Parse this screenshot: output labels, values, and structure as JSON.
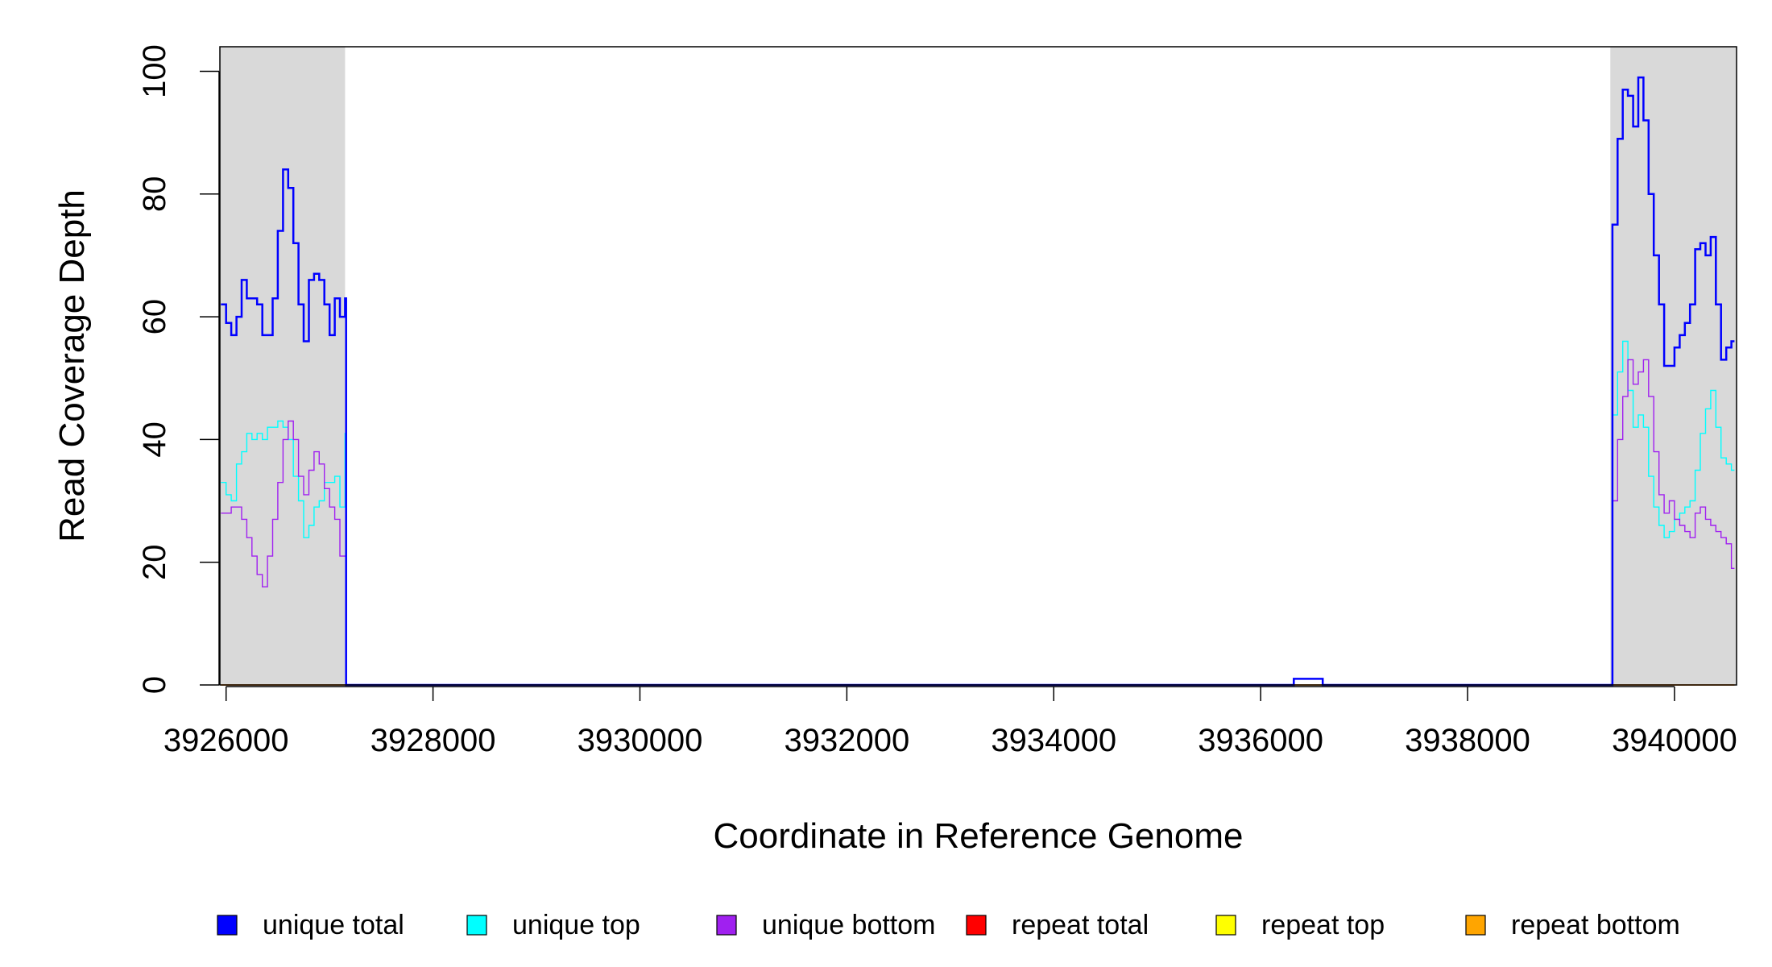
{
  "chart_data": {
    "type": "line",
    "title": "",
    "xlabel": "Coordinate in Reference Genome",
    "ylabel": "Read Coverage Depth",
    "xlim": [
      3925940,
      3940600
    ],
    "ylim": [
      0,
      104
    ],
    "x_ticks": [
      3926000,
      3928000,
      3930000,
      3932000,
      3934000,
      3936000,
      3938000,
      3940000
    ],
    "x_tick_labels": [
      "3926000",
      "3928000",
      "3930000",
      "3932000",
      "3934000",
      "3936000",
      "3938000",
      "3940000"
    ],
    "y_ticks": [
      0,
      20,
      40,
      60,
      80,
      100
    ],
    "y_tick_labels": [
      "0",
      "20",
      "40",
      "60",
      "80",
      "100"
    ],
    "shaded_regions": [
      {
        "x_start": 3925940,
        "x_end": 3927150
      },
      {
        "x_start": 3939380,
        "x_end": 3940600
      }
    ],
    "legend_position": "bottom",
    "series": [
      {
        "name": "unique total",
        "color": "#0000ff",
        "x": [
          3925950,
          3926000,
          3926050,
          3926100,
          3926150,
          3926200,
          3926250,
          3926300,
          3926350,
          3926400,
          3926450,
          3926500,
          3926550,
          3926600,
          3926650,
          3926700,
          3926750,
          3926800,
          3926850,
          3926900,
          3926950,
          3927000,
          3927050,
          3927100,
          3927150,
          3927160,
          3936300,
          3936320,
          3936580,
          3936600,
          3939380,
          3939400,
          3939450,
          3939500,
          3939550,
          3939600,
          3939650,
          3939700,
          3939750,
          3939800,
          3939850,
          3939900,
          3939950,
          3940000,
          3940050,
          3940100,
          3940150,
          3940200,
          3940250,
          3940300,
          3940350,
          3940400,
          3940450,
          3940500,
          3940550,
          3940580
        ],
        "values": [
          62,
          59,
          57,
          60,
          66,
          63,
          63,
          62,
          57,
          57,
          63,
          74,
          84,
          81,
          72,
          62,
          56,
          66,
          67,
          66,
          62,
          57,
          63,
          60,
          63,
          0,
          0,
          1,
          1,
          0,
          0,
          75,
          89,
          97,
          96,
          91,
          99,
          92,
          80,
          70,
          62,
          52,
          52,
          55,
          57,
          59,
          62,
          71,
          72,
          70,
          73,
          62,
          53,
          55,
          56,
          56
        ]
      },
      {
        "name": "unique top",
        "color": "#00ffff",
        "x": [
          3925950,
          3926000,
          3926050,
          3926100,
          3926150,
          3926200,
          3926250,
          3926300,
          3926350,
          3926400,
          3926450,
          3926500,
          3926550,
          3926600,
          3926650,
          3926700,
          3926750,
          3926800,
          3926850,
          3926900,
          3926950,
          3927000,
          3927050,
          3927100,
          3927150,
          3927160,
          3936300,
          3936320,
          3936580,
          3936600,
          3939380,
          3939400,
          3939450,
          3939500,
          3939550,
          3939600,
          3939650,
          3939700,
          3939750,
          3939800,
          3939850,
          3939900,
          3939950,
          3940000,
          3940050,
          3940100,
          3940150,
          3940200,
          3940250,
          3940300,
          3940350,
          3940400,
          3940450,
          3940500,
          3940550,
          3940580
        ],
        "values": [
          33,
          31,
          30,
          36,
          38,
          41,
          40,
          41,
          40,
          42,
          42,
          43,
          42,
          40,
          34,
          30,
          24,
          26,
          29,
          30,
          33,
          33,
          34,
          29,
          41,
          0,
          0,
          1,
          1,
          0,
          0,
          44,
          51,
          56,
          48,
          42,
          44,
          42,
          34,
          29,
          26,
          24,
          25,
          27,
          28,
          29,
          30,
          35,
          41,
          45,
          48,
          42,
          37,
          36,
          35,
          35
        ]
      },
      {
        "name": "unique bottom",
        "color": "#a020f0",
        "x": [
          3925950,
          3926000,
          3926050,
          3926100,
          3926150,
          3926200,
          3926250,
          3926300,
          3926350,
          3926400,
          3926450,
          3926500,
          3926550,
          3926600,
          3926650,
          3926700,
          3926750,
          3926800,
          3926850,
          3926900,
          3926950,
          3927000,
          3927050,
          3927100,
          3927150,
          3927160,
          3936300,
          3936320,
          3936580,
          3936600,
          3939380,
          3939400,
          3939450,
          3939500,
          3939550,
          3939600,
          3939650,
          3939700,
          3939750,
          3939800,
          3939850,
          3939900,
          3939950,
          3940000,
          3940050,
          3940100,
          3940150,
          3940200,
          3940250,
          3940300,
          3940350,
          3940400,
          3940450,
          3940500,
          3940550,
          3940580
        ],
        "values": [
          28,
          28,
          29,
          29,
          27,
          24,
          21,
          18,
          16,
          21,
          27,
          33,
          40,
          43,
          40,
          34,
          31,
          35,
          38,
          36,
          32,
          29,
          27,
          21,
          21,
          0,
          0,
          1,
          1,
          0,
          0,
          30,
          40,
          47,
          53,
          49,
          51,
          53,
          47,
          38,
          31,
          28,
          30,
          27,
          26,
          25,
          24,
          28,
          29,
          27,
          26,
          25,
          24,
          23,
          19,
          19
        ]
      },
      {
        "name": "repeat total",
        "color": "#ff0000",
        "x": [
          3925950,
          3940580
        ],
        "values": [
          0,
          0
        ]
      },
      {
        "name": "repeat top",
        "color": "#ffff00",
        "x": [
          3925950,
          3940580
        ],
        "values": [
          0,
          0
        ]
      },
      {
        "name": "repeat bottom",
        "color": "#ffa500",
        "x": [
          3925950,
          3940580
        ],
        "values": [
          0,
          0
        ]
      }
    ],
    "line_widths": {
      "unique total": 2.5,
      "unique top": 1.4,
      "unique bottom": 1.4,
      "repeat total": 1.2,
      "repeat top": 1.2,
      "repeat bottom": 1.6
    }
  },
  "legend": {
    "items": [
      {
        "label": "unique total",
        "color": "#0000ff"
      },
      {
        "label": "unique top",
        "color": "#00ffff"
      },
      {
        "label": "unique bottom",
        "color": "#a020f0"
      },
      {
        "label": "repeat total",
        "color": "#ff0000"
      },
      {
        "label": "repeat top",
        "color": "#ffff00"
      },
      {
        "label": "repeat bottom",
        "color": "#ffa500"
      }
    ]
  },
  "colors": {
    "shade": "#d9d9d9",
    "axis": "#000000",
    "background": "#ffffff"
  }
}
